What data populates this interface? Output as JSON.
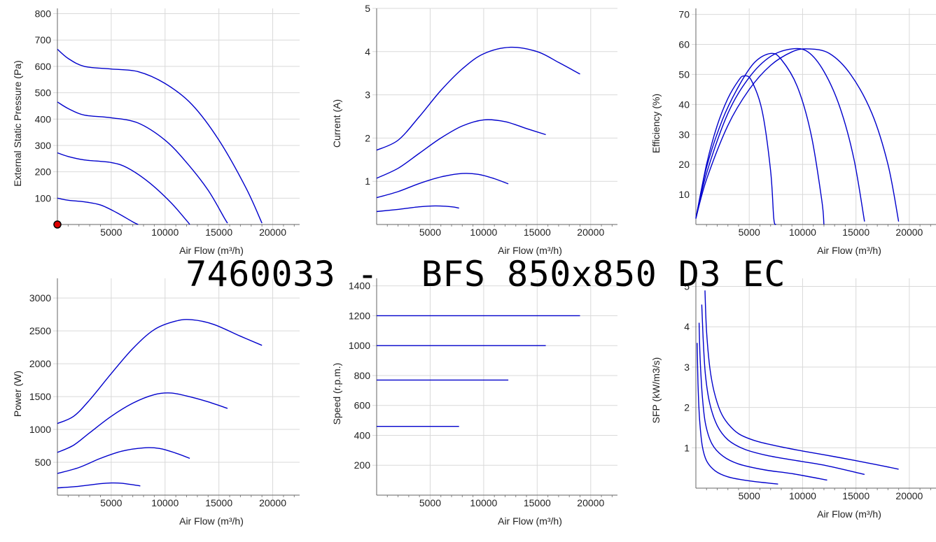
{
  "title": "7460033 -  BFS 850x850 D3 EC",
  "line_color": "#0000cc",
  "grid_color": "#d9d9d9",
  "marker_color": "#dd0000",
  "chart_data": [
    {
      "type": "line",
      "title": "",
      "xlabel": "Air Flow (m³/h)",
      "ylabel": "External Static Pressure (Pa)",
      "xlim": [
        0,
        22500
      ],
      "ylim": [
        0,
        820
      ],
      "xticks": [
        5000,
        10000,
        15000,
        20000
      ],
      "yticks": [
        100,
        200,
        300,
        400,
        500,
        600,
        700,
        800
      ],
      "grid": true,
      "marker": {
        "x": 0,
        "y": 0
      },
      "series": [
        {
          "points": [
            [
              0,
              665
            ],
            [
              1000,
              630
            ],
            [
              2500,
              600
            ],
            [
              5000,
              590
            ],
            [
              7500,
              580
            ],
            [
              10000,
              535
            ],
            [
              12500,
              455
            ],
            [
              15000,
              320
            ],
            [
              17500,
              140
            ],
            [
              19000,
              5
            ]
          ]
        },
        {
          "points": [
            [
              0,
              465
            ],
            [
              1000,
              440
            ],
            [
              2500,
              415
            ],
            [
              5000,
              405
            ],
            [
              7500,
              385
            ],
            [
              10000,
              320
            ],
            [
              12000,
              235
            ],
            [
              14000,
              130
            ],
            [
              15500,
              25
            ],
            [
              15800,
              5
            ]
          ]
        },
        {
          "points": [
            [
              0,
              272
            ],
            [
              1000,
              258
            ],
            [
              2500,
              245
            ],
            [
              5000,
              235
            ],
            [
              6500,
              215
            ],
            [
              8500,
              160
            ],
            [
              10500,
              85
            ],
            [
              12000,
              15
            ],
            [
              12300,
              0
            ]
          ]
        },
        {
          "points": [
            [
              0,
              100
            ],
            [
              1000,
              92
            ],
            [
              2500,
              86
            ],
            [
              4000,
              74
            ],
            [
              5500,
              45
            ],
            [
              7000,
              10
            ],
            [
              7500,
              0
            ]
          ]
        }
      ]
    },
    {
      "type": "line",
      "title": "",
      "xlabel": "Air Flow (m³/h)",
      "ylabel": "Current (A)",
      "xlim": [
        0,
        22500
      ],
      "ylim": [
        0,
        5
      ],
      "xticks": [
        5000,
        10000,
        15000,
        20000
      ],
      "yticks": [
        1,
        2,
        3,
        4,
        5
      ],
      "grid": true,
      "series": [
        {
          "points": [
            [
              0,
              1.72
            ],
            [
              2000,
              1.95
            ],
            [
              4000,
              2.5
            ],
            [
              6000,
              3.1
            ],
            [
              8000,
              3.6
            ],
            [
              10000,
              3.95
            ],
            [
              12500,
              4.1
            ],
            [
              15000,
              4.0
            ],
            [
              17000,
              3.75
            ],
            [
              19000,
              3.48
            ]
          ]
        },
        {
          "points": [
            [
              0,
              1.07
            ],
            [
              2000,
              1.3
            ],
            [
              4000,
              1.65
            ],
            [
              6000,
              2.0
            ],
            [
              8000,
              2.28
            ],
            [
              10000,
              2.42
            ],
            [
              12000,
              2.38
            ],
            [
              14000,
              2.22
            ],
            [
              15800,
              2.08
            ]
          ]
        },
        {
          "points": [
            [
              0,
              0.62
            ],
            [
              2000,
              0.76
            ],
            [
              4000,
              0.95
            ],
            [
              6000,
              1.1
            ],
            [
              8000,
              1.18
            ],
            [
              9500,
              1.16
            ],
            [
              11000,
              1.06
            ],
            [
              12300,
              0.94
            ]
          ]
        },
        {
          "points": [
            [
              0,
              0.3
            ],
            [
              2000,
              0.35
            ],
            [
              4000,
              0.41
            ],
            [
              5500,
              0.43
            ],
            [
              7000,
              0.41
            ],
            [
              7700,
              0.38
            ]
          ]
        }
      ]
    },
    {
      "type": "line",
      "title": "",
      "xlabel": "Air Flow (m³/h)",
      "ylabel": "Efficiency (%)",
      "xlim": [
        0,
        22500
      ],
      "ylim": [
        0,
        72
      ],
      "xticks": [
        5000,
        10000,
        15000,
        20000
      ],
      "yticks": [
        10,
        20,
        30,
        40,
        50,
        60,
        70
      ],
      "grid": true,
      "series": [
        {
          "points": [
            [
              0,
              2
            ],
            [
              1000,
              20
            ],
            [
              2000,
              33
            ],
            [
              3000,
              42
            ],
            [
              4000,
              48
            ],
            [
              4500,
              49.5
            ],
            [
              5200,
              48
            ],
            [
              6200,
              38
            ],
            [
              7000,
              18
            ],
            [
              7300,
              2
            ],
            [
              7500,
              0
            ]
          ]
        },
        {
          "points": [
            [
              0,
              2
            ],
            [
              1000,
              19
            ],
            [
              2500,
              35
            ],
            [
              4000,
              46
            ],
            [
              5500,
              54
            ],
            [
              7000,
              57
            ],
            [
              8000,
              55
            ],
            [
              9500,
              46
            ],
            [
              10800,
              30
            ],
            [
              11800,
              8
            ],
            [
              12000,
              0
            ]
          ]
        },
        {
          "points": [
            [
              0,
              2
            ],
            [
              1000,
              17
            ],
            [
              3000,
              37
            ],
            [
              5000,
              49
            ],
            [
              7000,
              56
            ],
            [
              9000,
              58.5
            ],
            [
              10500,
              57.5
            ],
            [
              12000,
              51
            ],
            [
              13500,
              39
            ],
            [
              14800,
              22
            ],
            [
              15800,
              1
            ]
          ]
        },
        {
          "points": [
            [
              0,
              2
            ],
            [
              1000,
              15
            ],
            [
              3000,
              33
            ],
            [
              5000,
              45
            ],
            [
              7000,
              53
            ],
            [
              9000,
              57.5
            ],
            [
              10500,
              58.5
            ],
            [
              12500,
              57
            ],
            [
              14500,
              50
            ],
            [
              16500,
              37
            ],
            [
              18000,
              20
            ],
            [
              19000,
              1
            ]
          ]
        }
      ]
    },
    {
      "type": "line",
      "title": "",
      "xlabel": "Air Flow (m³/h)",
      "ylabel": "Power (W)",
      "xlim": [
        0,
        22500
      ],
      "ylim": [
        0,
        3300
      ],
      "xticks": [
        5000,
        10000,
        15000,
        20000
      ],
      "yticks": [
        500,
        1000,
        1500,
        2000,
        2500,
        3000
      ],
      "grid": true,
      "series": [
        {
          "points": [
            [
              0,
              1090
            ],
            [
              1500,
              1200
            ],
            [
              3000,
              1450
            ],
            [
              5000,
              1850
            ],
            [
              7000,
              2230
            ],
            [
              9000,
              2520
            ],
            [
              11000,
              2650
            ],
            [
              12500,
              2670
            ],
            [
              14500,
              2600
            ],
            [
              17000,
              2420
            ],
            [
              19000,
              2280
            ]
          ]
        },
        {
          "points": [
            [
              0,
              650
            ],
            [
              1500,
              760
            ],
            [
              3000,
              950
            ],
            [
              5000,
              1200
            ],
            [
              7000,
              1400
            ],
            [
              9000,
              1530
            ],
            [
              10500,
              1555
            ],
            [
              12000,
              1510
            ],
            [
              14000,
              1420
            ],
            [
              15800,
              1320
            ]
          ]
        },
        {
          "points": [
            [
              0,
              330
            ],
            [
              2000,
              420
            ],
            [
              4000,
              560
            ],
            [
              6000,
              670
            ],
            [
              8000,
              720
            ],
            [
              9500,
              710
            ],
            [
              11000,
              640
            ],
            [
              12300,
              560
            ]
          ]
        },
        {
          "points": [
            [
              0,
              110
            ],
            [
              2000,
              135
            ],
            [
              4000,
              175
            ],
            [
              5000,
              185
            ],
            [
              6000,
              180
            ],
            [
              7700,
              140
            ]
          ]
        }
      ]
    },
    {
      "type": "line",
      "title": "",
      "xlabel": "Air Flow (m³/h)",
      "ylabel": "Speed (r.p.m.)",
      "xlim": [
        0,
        22500
      ],
      "ylim": [
        0,
        1450
      ],
      "xticks": [
        5000,
        10000,
        15000,
        20000
      ],
      "yticks": [
        200,
        400,
        600,
        800,
        1000,
        1200,
        1400
      ],
      "grid": true,
      "series": [
        {
          "points": [
            [
              0,
              1200
            ],
            [
              19000,
              1200
            ]
          ]
        },
        {
          "points": [
            [
              0,
              1000
            ],
            [
              15800,
              1000
            ]
          ]
        },
        {
          "points": [
            [
              0,
              770
            ],
            [
              12300,
              770
            ]
          ]
        },
        {
          "points": [
            [
              0,
              460
            ],
            [
              7700,
              460
            ]
          ]
        }
      ]
    },
    {
      "type": "line",
      "title": "",
      "xlabel": "Air Flow (m³/h)",
      "ylabel": "SFP (kW/m3/s)",
      "xlim": [
        0,
        22500
      ],
      "ylim": [
        0,
        5.2
      ],
      "xticks": [
        5000,
        10000,
        15000,
        20000
      ],
      "yticks": [
        1,
        2,
        3,
        4,
        5
      ],
      "grid": true,
      "series": [
        {
          "points": [
            [
              850,
              4.9
            ],
            [
              1000,
              3.9
            ],
            [
              1300,
              3.0
            ],
            [
              1700,
              2.4
            ],
            [
              2300,
              1.9
            ],
            [
              3000,
              1.6
            ],
            [
              4000,
              1.35
            ],
            [
              5500,
              1.18
            ],
            [
              7500,
              1.05
            ],
            [
              10000,
              0.92
            ],
            [
              13000,
              0.78
            ],
            [
              16000,
              0.63
            ],
            [
              19000,
              0.47
            ]
          ]
        },
        {
          "points": [
            [
              550,
              4.55
            ],
            [
              700,
              3.6
            ],
            [
              900,
              2.8
            ],
            [
              1300,
              2.1
            ],
            [
              2000,
              1.55
            ],
            [
              3000,
              1.2
            ],
            [
              4500,
              0.97
            ],
            [
              6500,
              0.82
            ],
            [
              9000,
              0.7
            ],
            [
              12000,
              0.57
            ],
            [
              15800,
              0.34
            ]
          ]
        },
        {
          "points": [
            [
              300,
              4.1
            ],
            [
              400,
              3.2
            ],
            [
              600,
              2.3
            ],
            [
              900,
              1.6
            ],
            [
              1500,
              1.1
            ],
            [
              2500,
              0.8
            ],
            [
              4000,
              0.6
            ],
            [
              6500,
              0.45
            ],
            [
              9000,
              0.36
            ],
            [
              12300,
              0.2
            ]
          ]
        },
        {
          "points": [
            [
              120,
              3.6
            ],
            [
              200,
              2.6
            ],
            [
              350,
              1.7
            ],
            [
              600,
              1.05
            ],
            [
              1000,
              0.68
            ],
            [
              1800,
              0.43
            ],
            [
              3000,
              0.28
            ],
            [
              5000,
              0.18
            ],
            [
              7700,
              0.1
            ]
          ]
        }
      ]
    }
  ]
}
